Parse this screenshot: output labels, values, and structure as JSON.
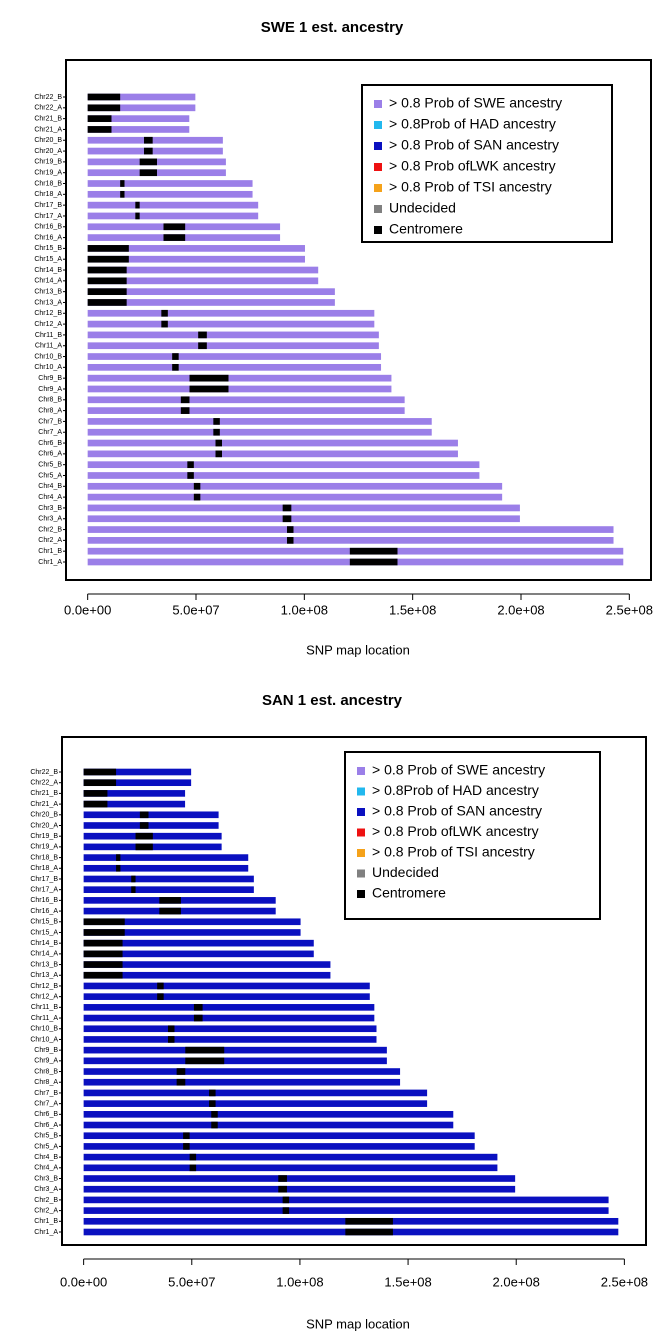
{
  "chart_data": [
    {
      "type": "bar",
      "title": "SWE 1 est. ancestry",
      "x_label": "SNP map location",
      "color": "#9b7fe8",
      "categories": [
        "Chr22_B",
        "Chr22_A",
        "Chr21_B",
        "Chr21_A",
        "Chr20_B",
        "Chr20_A",
        "Chr19_B",
        "Chr19_A",
        "Chr18_B",
        "Chr18_A",
        "Chr17_B",
        "Chr17_A",
        "Chr16_B",
        "Chr16_A",
        "Chr15_B",
        "Chr15_A",
        "Chr14_B",
        "Chr14_A",
        "Chr13_B",
        "Chr13_A",
        "Chr12_B",
        "Chr12_A",
        "Chr11_B",
        "Chr11_A",
        "Chr10_B",
        "Chr10_A",
        "Chr9_B",
        "Chr9_A",
        "Chr8_B",
        "Chr8_A",
        "Chr7_B",
        "Chr7_A",
        "Chr6_B",
        "Chr6_A",
        "Chr5_B",
        "Chr5_A",
        "Chr4_B",
        "Chr4_A",
        "Chr3_B",
        "Chr3_A",
        "Chr2_B",
        "Chr2_A",
        "Chr1_B",
        "Chr1_A"
      ],
      "values": [
        49700000,
        49700000,
        46900000,
        46900000,
        62400000,
        62400000,
        63800000,
        63800000,
        76100000,
        76100000,
        78700000,
        78700000,
        88800000,
        88800000,
        100300000,
        100300000,
        106400000,
        106400000,
        114100000,
        114100000,
        132300000,
        132300000,
        134400000,
        134400000,
        135400000,
        135400000,
        140200000,
        140200000,
        146300000,
        146300000,
        158800000,
        158800000,
        170900000,
        170900000,
        180800000,
        180800000,
        191300000,
        191300000,
        199500000,
        199500000,
        242700000,
        242700000,
        247200000,
        247200000
      ],
      "centromere": [
        [
          0,
          15000000
        ],
        [
          0,
          15000000
        ],
        [
          0,
          11000000
        ],
        [
          0,
          11000000
        ],
        [
          26000000,
          30000000
        ],
        [
          26000000,
          30000000
        ],
        [
          24000000,
          32000000
        ],
        [
          24000000,
          32000000
        ],
        [
          15000000,
          17000000
        ],
        [
          15000000,
          17000000
        ],
        [
          22000000,
          24000000
        ],
        [
          22000000,
          24000000
        ],
        [
          35000000,
          45000000
        ],
        [
          35000000,
          45000000
        ],
        [
          0,
          19000000
        ],
        [
          0,
          19000000
        ],
        [
          0,
          18000000
        ],
        [
          0,
          18000000
        ],
        [
          0,
          18000000
        ],
        [
          0,
          18000000
        ],
        [
          34000000,
          37000000
        ],
        [
          34000000,
          37000000
        ],
        [
          51000000,
          55000000
        ],
        [
          51000000,
          55000000
        ],
        [
          39000000,
          42000000
        ],
        [
          39000000,
          42000000
        ],
        [
          47000000,
          65000000
        ],
        [
          47000000,
          65000000
        ],
        [
          43000000,
          47000000
        ],
        [
          43000000,
          47000000
        ],
        [
          58000000,
          61000000
        ],
        [
          58000000,
          61000000
        ],
        [
          59000000,
          62000000
        ],
        [
          59000000,
          62000000
        ],
        [
          46000000,
          49000000
        ],
        [
          46000000,
          49000000
        ],
        [
          49000000,
          52000000
        ],
        [
          49000000,
          52000000
        ],
        [
          90000000,
          94000000
        ],
        [
          90000000,
          94000000
        ],
        [
          92000000,
          95000000
        ],
        [
          92000000,
          95000000
        ],
        [
          121000000,
          143000000
        ],
        [
          121000000,
          143000000
        ]
      ],
      "series": [
        {
          "name": "> 0.8 Prob of SWE ancestry",
          "color": "#9b7fe8"
        },
        {
          "name": "> 0.8Prob of HAD ancestry",
          "color": "#22b8ee"
        },
        {
          "name": "> 0.8 Prob of SAN ancestry",
          "color": "#0a10c0"
        },
        {
          "name": "> 0.8 Prob ofLWK ancestry",
          "color": "#ee1111"
        },
        {
          "name": "> 0.8 Prob of TSI ancestry",
          "color": "#f5a21a"
        },
        {
          "name": "Undecided",
          "color": "#808080"
        },
        {
          "name": "Centromere",
          "color": "#000000"
        }
      ],
      "xlim": [
        -10000000,
        260000000
      ],
      "xticks": [
        {
          "value": 0,
          "label": "0.0e+00"
        },
        {
          "value": 50000000,
          "label": "5.0e+07"
        },
        {
          "value": 100000000,
          "label": "1.0e+08"
        },
        {
          "value": 150000000,
          "label": "1.5e+08"
        },
        {
          "value": 200000000,
          "label": "2.0e+08"
        },
        {
          "value": 250000000,
          "label": "2.5e+08"
        }
      ],
      "legend": "upper right"
    },
    {
      "type": "bar",
      "title": "SAN 1 est. ancestry",
      "x_label": "SNP map location",
      "color": "#0a10c0",
      "categories": [
        "Chr22_B",
        "Chr22_A",
        "Chr21_B",
        "Chr21_A",
        "Chr20_B",
        "Chr20_A",
        "Chr19_B",
        "Chr19_A",
        "Chr18_B",
        "Chr18_A",
        "Chr17_B",
        "Chr17_A",
        "Chr16_B",
        "Chr16_A",
        "Chr15_B",
        "Chr15_A",
        "Chr14_B",
        "Chr14_A",
        "Chr13_B",
        "Chr13_A",
        "Chr12_B",
        "Chr12_A",
        "Chr11_B",
        "Chr11_A",
        "Chr10_B",
        "Chr10_A",
        "Chr9_B",
        "Chr9_A",
        "Chr8_B",
        "Chr8_A",
        "Chr7_B",
        "Chr7_A",
        "Chr6_B",
        "Chr6_A",
        "Chr5_B",
        "Chr5_A",
        "Chr4_B",
        "Chr4_A",
        "Chr3_B",
        "Chr3_A",
        "Chr2_B",
        "Chr2_A",
        "Chr1_B",
        "Chr1_A"
      ],
      "values": [
        49700000,
        49700000,
        46900000,
        46900000,
        62400000,
        62400000,
        63800000,
        63800000,
        76100000,
        76100000,
        78700000,
        78700000,
        88800000,
        88800000,
        100300000,
        100300000,
        106400000,
        106400000,
        114100000,
        114100000,
        132300000,
        132300000,
        134400000,
        134400000,
        135400000,
        135400000,
        140200000,
        140200000,
        146300000,
        146300000,
        158800000,
        158800000,
        170900000,
        170900000,
        180800000,
        180800000,
        191300000,
        191300000,
        199500000,
        199500000,
        242700000,
        242700000,
        247200000,
        247200000
      ],
      "centromere": [
        [
          0,
          15000000
        ],
        [
          0,
          15000000
        ],
        [
          0,
          11000000
        ],
        [
          0,
          11000000
        ],
        [
          26000000,
          30000000
        ],
        [
          26000000,
          30000000
        ],
        [
          24000000,
          32000000
        ],
        [
          24000000,
          32000000
        ],
        [
          15000000,
          17000000
        ],
        [
          15000000,
          17000000
        ],
        [
          22000000,
          24000000
        ],
        [
          22000000,
          24000000
        ],
        [
          35000000,
          45000000
        ],
        [
          35000000,
          45000000
        ],
        [
          0,
          19000000
        ],
        [
          0,
          19000000
        ],
        [
          0,
          18000000
        ],
        [
          0,
          18000000
        ],
        [
          0,
          18000000
        ],
        [
          0,
          18000000
        ],
        [
          34000000,
          37000000
        ],
        [
          34000000,
          37000000
        ],
        [
          51000000,
          55000000
        ],
        [
          51000000,
          55000000
        ],
        [
          39000000,
          42000000
        ],
        [
          39000000,
          42000000
        ],
        [
          47000000,
          65000000
        ],
        [
          47000000,
          65000000
        ],
        [
          43000000,
          47000000
        ],
        [
          43000000,
          47000000
        ],
        [
          58000000,
          61000000
        ],
        [
          58000000,
          61000000
        ],
        [
          59000000,
          62000000
        ],
        [
          59000000,
          62000000
        ],
        [
          46000000,
          49000000
        ],
        [
          46000000,
          49000000
        ],
        [
          49000000,
          52000000
        ],
        [
          49000000,
          52000000
        ],
        [
          90000000,
          94000000
        ],
        [
          90000000,
          94000000
        ],
        [
          92000000,
          95000000
        ],
        [
          92000000,
          95000000
        ],
        [
          121000000,
          143000000
        ],
        [
          121000000,
          143000000
        ]
      ],
      "series": [
        {
          "name": "> 0.8 Prob of SWE ancestry",
          "color": "#9b7fe8"
        },
        {
          "name": "> 0.8Prob of HAD ancestry",
          "color": "#22b8ee"
        },
        {
          "name": "> 0.8 Prob of SAN ancestry",
          "color": "#0a10c0"
        },
        {
          "name": "> 0.8 Prob ofLWK ancestry",
          "color": "#ee1111"
        },
        {
          "name": "> 0.8 Prob of TSI ancestry",
          "color": "#f5a21a"
        },
        {
          "name": "Undecided",
          "color": "#808080"
        },
        {
          "name": "Centromere",
          "color": "#000000"
        }
      ],
      "xlim": [
        -10000000,
        260000000
      ],
      "xticks": [
        {
          "value": 0,
          "label": "0.0e+00"
        },
        {
          "value": 50000000,
          "label": "5.0e+07"
        },
        {
          "value": 100000000,
          "label": "1.0e+08"
        },
        {
          "value": 150000000,
          "label": "1.5e+08"
        },
        {
          "value": 200000000,
          "label": "2.0e+08"
        },
        {
          "value": 250000000,
          "label": "2.5e+08"
        }
      ],
      "legend": "upper right"
    }
  ]
}
